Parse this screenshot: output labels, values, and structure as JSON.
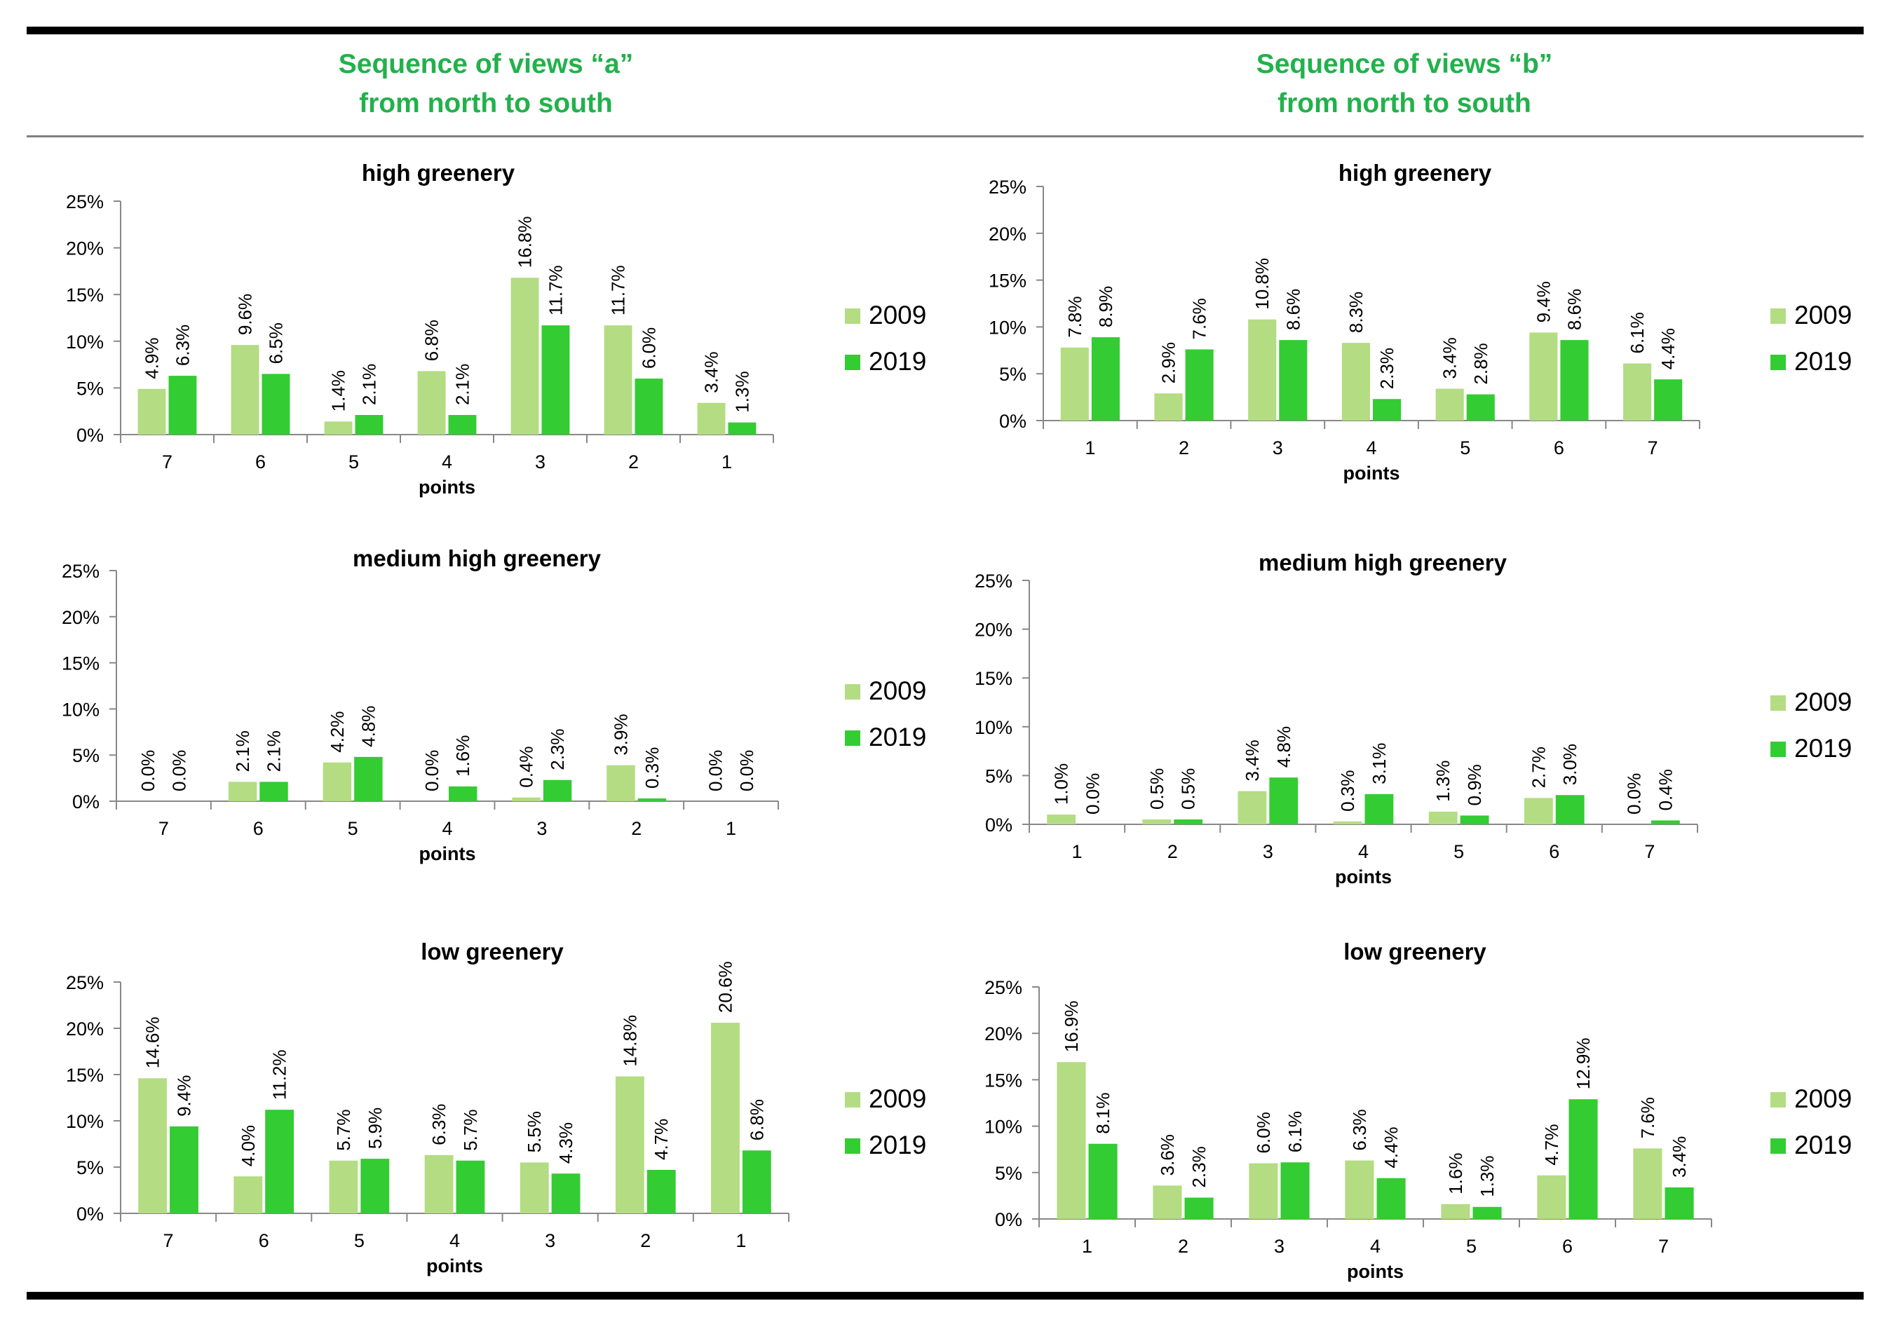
{
  "headings": {
    "a": {
      "line1": "Sequence of views “a”",
      "line2": "from north to south"
    },
    "b": {
      "line1": "Sequence of views “b”",
      "line2": "from north to south"
    }
  },
  "colors": {
    "s2009": "#b4dc82",
    "s2019": "#33cc33",
    "heading": "#22b14c"
  },
  "chart_data": [
    {
      "id": "a-high",
      "type": "bar",
      "title": "high greenery",
      "xlabel": "points",
      "ylabel": "",
      "ylim": [
        0,
        25
      ],
      "yticks": [
        "0%",
        "5%",
        "10%",
        "15%",
        "20%",
        "25%"
      ],
      "categories": [
        "7",
        "6",
        "5",
        "4",
        "3",
        "2",
        "1"
      ],
      "series": [
        {
          "name": "2009",
          "values": [
            4.9,
            9.6,
            1.4,
            6.8,
            16.8,
            11.7,
            3.4
          ],
          "labels": [
            "4.9%",
            "9.6%",
            "1.4%",
            "6.8%",
            "16.8%",
            "11.7%",
            "3.4%"
          ]
        },
        {
          "name": "2019",
          "values": [
            6.3,
            6.5,
            2.1,
            2.1,
            11.7,
            6.0,
            1.3
          ],
          "labels": [
            "6.3%",
            "6.5%",
            "2.1%",
            "2.1%",
            "11.7%",
            "6.0%",
            "1.3%"
          ]
        }
      ]
    },
    {
      "id": "b-high",
      "type": "bar",
      "title": "high greenery",
      "xlabel": "points",
      "ylabel": "",
      "ylim": [
        0,
        25
      ],
      "yticks": [
        "0%",
        "5%",
        "10%",
        "15%",
        "20%",
        "25%"
      ],
      "categories": [
        "1",
        "2",
        "3",
        "4",
        "5",
        "6",
        "7"
      ],
      "series": [
        {
          "name": "2009",
          "values": [
            7.8,
            2.9,
            10.8,
            8.3,
            3.4,
            9.4,
            6.1
          ],
          "labels": [
            "7.8%",
            "2.9%",
            "10.8%",
            "8.3%",
            "3.4%",
            "9.4%",
            "6.1%"
          ]
        },
        {
          "name": "2019",
          "values": [
            8.9,
            7.6,
            8.6,
            2.3,
            2.8,
            8.6,
            4.4
          ],
          "labels": [
            "8.9%",
            "7.6%",
            "8.6%",
            "2.3%",
            "2.8%",
            "8.6%",
            "4.4%"
          ]
        }
      ]
    },
    {
      "id": "a-medium",
      "type": "bar",
      "title": "medium high greenery",
      "xlabel": "points",
      "ylabel": "",
      "ylim": [
        0,
        25
      ],
      "yticks": [
        "0%",
        "5%",
        "10%",
        "15%",
        "20%",
        "25%"
      ],
      "categories": [
        "7",
        "6",
        "5",
        "4",
        "3",
        "2",
        "1"
      ],
      "series": [
        {
          "name": "2009",
          "values": [
            0.0,
            2.1,
            4.2,
            0.0,
            0.4,
            3.9,
            0.0
          ],
          "labels": [
            "0.0%",
            "2.1%",
            "4.2%",
            "0.0%",
            "0.4%",
            "3.9%",
            "0.0%"
          ]
        },
        {
          "name": "2019",
          "values": [
            0.0,
            2.1,
            4.8,
            1.6,
            2.3,
            0.3,
            0.0
          ],
          "labels": [
            "0.0%",
            "2.1%",
            "4.8%",
            "1.6%",
            "2.3%",
            "0.3%",
            "0.0%"
          ]
        }
      ]
    },
    {
      "id": "b-medium",
      "type": "bar",
      "title": "medium high greenery",
      "xlabel": "points",
      "ylabel": "",
      "ylim": [
        0,
        25
      ],
      "yticks": [
        "0%",
        "5%",
        "10%",
        "15%",
        "20%",
        "25%"
      ],
      "categories": [
        "1",
        "2",
        "3",
        "4",
        "5",
        "6",
        "7"
      ],
      "series": [
        {
          "name": "2009",
          "values": [
            1.0,
            0.5,
            3.4,
            0.3,
            1.3,
            2.7,
            0.0
          ],
          "labels": [
            "1.0%",
            "0.5%",
            "3.4%",
            "0.3%",
            "1.3%",
            "2.7%",
            "0.0%"
          ]
        },
        {
          "name": "2019",
          "values": [
            0.0,
            0.5,
            4.8,
            3.1,
            0.9,
            3.0,
            0.4
          ],
          "labels": [
            "0.0%",
            "0.5%",
            "4.8%",
            "3.1%",
            "0.9%",
            "3.0%",
            "0.4%"
          ]
        }
      ]
    },
    {
      "id": "a-low",
      "type": "bar",
      "title": "low greenery",
      "xlabel": "points",
      "ylabel": "",
      "ylim": [
        0,
        25
      ],
      "yticks": [
        "0%",
        "5%",
        "10%",
        "15%",
        "20%",
        "25%"
      ],
      "categories": [
        "7",
        "6",
        "5",
        "4",
        "3",
        "2",
        "1"
      ],
      "series": [
        {
          "name": "2009",
          "values": [
            14.6,
            4.0,
            5.7,
            6.3,
            5.5,
            14.8,
            20.6
          ],
          "labels": [
            "14.6%",
            "4.0%",
            "5.7%",
            "6.3%",
            "5.5%",
            "14.8%",
            "20.6%"
          ]
        },
        {
          "name": "2019",
          "values": [
            9.4,
            11.2,
            5.9,
            5.7,
            4.3,
            4.7,
            6.8
          ],
          "labels": [
            "9.4%",
            "11.2%",
            "5.9%",
            "5.7%",
            "4.3%",
            "4.7%",
            "6.8%"
          ]
        }
      ]
    },
    {
      "id": "b-low",
      "type": "bar",
      "title": "low greenery",
      "xlabel": "points",
      "ylabel": "",
      "ylim": [
        0,
        25
      ],
      "yticks": [
        "0%",
        "5%",
        "10%",
        "15%",
        "20%",
        "25%"
      ],
      "categories": [
        "1",
        "2",
        "3",
        "4",
        "5",
        "6",
        "7"
      ],
      "series": [
        {
          "name": "2009",
          "values": [
            16.9,
            3.6,
            6.0,
            6.3,
            1.6,
            4.7,
            7.6
          ],
          "labels": [
            "16.9%",
            "3.6%",
            "6.0%",
            "6.3%",
            "1.6%",
            "4.7%",
            "7.6%"
          ]
        },
        {
          "name": "2019",
          "values": [
            8.1,
            2.3,
            6.1,
            4.4,
            1.3,
            12.9,
            3.4
          ],
          "labels": [
            "8.1%",
            "2.3%",
            "6.1%",
            "4.4%",
            "1.3%",
            "12.9%",
            "3.4%"
          ]
        }
      ]
    }
  ]
}
